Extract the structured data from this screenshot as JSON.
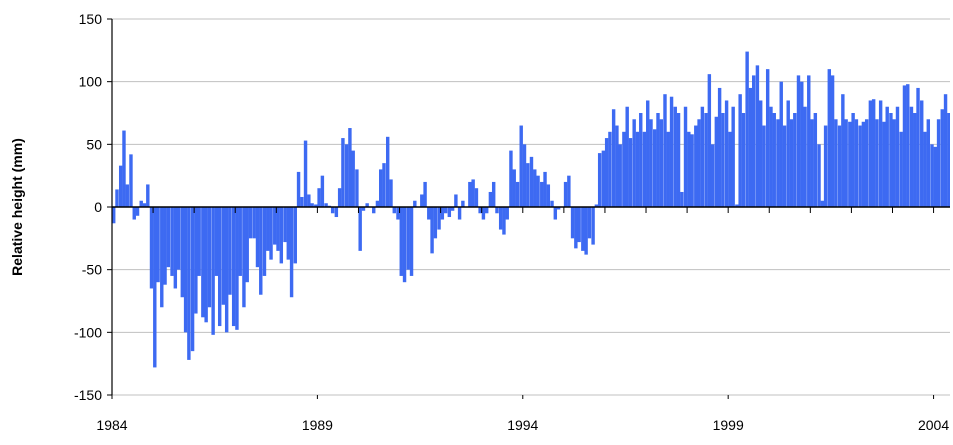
{
  "chart_data": {
    "type": "bar",
    "y_label": "Relative height (mm)",
    "color": "#3d6af2",
    "grid": true,
    "xlim": [
      1984,
      2004.4
    ],
    "xticks": [
      1984,
      1989,
      1994,
      1999,
      2004
    ],
    "xminorticks": [
      1984,
      1985,
      1986,
      1987,
      1988,
      1989,
      1990,
      1991,
      1992,
      1993,
      1994,
      1995,
      1996,
      1997,
      1998,
      1999,
      2000,
      2001,
      2002,
      2003,
      2004
    ],
    "ylim": [
      -150,
      150
    ],
    "yticks": [
      -150,
      -100,
      -50,
      0,
      50,
      100,
      150
    ],
    "x": [
      1984.0,
      1984.08,
      1984.17,
      1984.25,
      1984.33,
      1984.42,
      1984.5,
      1984.58,
      1984.67,
      1984.75,
      1984.83,
      1984.92,
      1985.0,
      1985.08,
      1985.17,
      1985.25,
      1985.33,
      1985.42,
      1985.5,
      1985.58,
      1985.67,
      1985.75,
      1985.83,
      1985.92,
      1986.0,
      1986.08,
      1986.17,
      1986.25,
      1986.33,
      1986.42,
      1986.5,
      1986.58,
      1986.67,
      1986.75,
      1986.83,
      1986.92,
      1987.0,
      1987.08,
      1987.17,
      1987.25,
      1987.33,
      1987.42,
      1987.5,
      1987.58,
      1987.67,
      1987.75,
      1987.83,
      1987.92,
      1988.0,
      1988.08,
      1988.17,
      1988.25,
      1988.33,
      1988.42,
      1988.5,
      1988.58,
      1988.67,
      1988.75,
      1988.83,
      1988.92,
      1989.0,
      1989.08,
      1989.17,
      1989.25,
      1989.33,
      1989.42,
      1989.5,
      1989.58,
      1989.67,
      1989.75,
      1989.83,
      1989.92,
      1990.0,
      1990.08,
      1990.17,
      1990.25,
      1990.33,
      1990.42,
      1990.5,
      1990.58,
      1990.67,
      1990.75,
      1990.83,
      1990.92,
      1991.0,
      1991.08,
      1991.17,
      1991.25,
      1991.33,
      1991.42,
      1991.5,
      1991.58,
      1991.67,
      1991.75,
      1991.83,
      1991.92,
      1992.0,
      1992.08,
      1992.17,
      1992.25,
      1992.33,
      1992.42,
      1992.5,
      1992.58,
      1992.67,
      1992.75,
      1992.83,
      1992.92,
      1993.0,
      1993.08,
      1993.17,
      1993.25,
      1993.33,
      1993.42,
      1993.5,
      1993.58,
      1993.67,
      1993.75,
      1993.83,
      1993.92,
      1994.0,
      1994.08,
      1994.17,
      1994.25,
      1994.33,
      1994.42,
      1994.5,
      1994.58,
      1994.67,
      1994.75,
      1994.83,
      1994.92,
      1995.0,
      1995.08,
      1995.17,
      1995.25,
      1995.33,
      1995.42,
      1995.5,
      1995.58,
      1995.67,
      1995.75,
      1995.83,
      1995.92,
      1996.0,
      1996.08,
      1996.17,
      1996.25,
      1996.33,
      1996.42,
      1996.5,
      1996.58,
      1996.67,
      1996.75,
      1996.83,
      1996.92,
      1997.0,
      1997.08,
      1997.17,
      1997.25,
      1997.33,
      1997.42,
      1997.5,
      1997.58,
      1997.67,
      1997.75,
      1997.83,
      1997.92,
      1998.0,
      1998.08,
      1998.17,
      1998.25,
      1998.33,
      1998.42,
      1998.5,
      1998.58,
      1998.67,
      1998.75,
      1998.83,
      1998.92,
      1999.0,
      1999.08,
      1999.17,
      1999.25,
      1999.33,
      1999.42,
      1999.5,
      1999.58,
      1999.67,
      1999.75,
      1999.83,
      1999.92,
      2000.0,
      2000.08,
      2000.17,
      2000.25,
      2000.33,
      2000.42,
      2000.5,
      2000.58,
      2000.67,
      2000.75,
      2000.83,
      2000.92,
      2001.0,
      2001.08,
      2001.17,
      2001.25,
      2001.33,
      2001.42,
      2001.5,
      2001.58,
      2001.67,
      2001.75,
      2001.83,
      2001.92,
      2002.0,
      2002.08,
      2002.17,
      2002.25,
      2002.33,
      2002.42,
      2002.5,
      2002.58,
      2002.67,
      2002.75,
      2002.83,
      2002.92,
      2003.0,
      2003.08,
      2003.17,
      2003.25,
      2003.33,
      2003.42,
      2003.5,
      2003.58,
      2003.67,
      2003.75,
      2003.83,
      2003.92,
      2004.0,
      2004.08,
      2004.17,
      2004.25,
      2004.33
    ],
    "values": [
      -13,
      14,
      33,
      61,
      18,
      42,
      -10,
      -7,
      5,
      3,
      18,
      -65,
      -128,
      -60,
      -80,
      -62,
      -48,
      -55,
      -65,
      -50,
      -72,
      -100,
      -122,
      -115,
      -85,
      -55,
      -88,
      -92,
      -80,
      -102,
      -55,
      -95,
      -78,
      -100,
      -70,
      -95,
      -98,
      -55,
      -80,
      -60,
      -25,
      -25,
      -48,
      -70,
      -55,
      -35,
      -42,
      -30,
      -35,
      -45,
      -28,
      -42,
      -72,
      -45,
      28,
      8,
      53,
      10,
      3,
      2,
      15,
      25,
      3,
      1,
      -5,
      -8,
      15,
      55,
      50,
      63,
      45,
      30,
      -35,
      -3,
      3,
      0,
      -5,
      5,
      30,
      35,
      56,
      22,
      -5,
      -10,
      -55,
      -60,
      -50,
      -55,
      5,
      0,
      10,
      20,
      -10,
      -37,
      -25,
      -18,
      -10,
      -5,
      -8,
      -3,
      10,
      -10,
      5,
      0,
      20,
      22,
      15,
      -5,
      -10,
      -5,
      12,
      20,
      -5,
      -18,
      -22,
      -10,
      45,
      30,
      20,
      65,
      50,
      35,
      40,
      30,
      25,
      20,
      28,
      18,
      5,
      -10,
      -2,
      0,
      20,
      25,
      -25,
      -33,
      -28,
      -35,
      -38,
      -25,
      -30,
      2,
      43,
      45,
      55,
      60,
      78,
      65,
      50,
      60,
      80,
      55,
      70,
      60,
      75,
      60,
      85,
      70,
      62,
      75,
      70,
      90,
      60,
      88,
      80,
      75,
      12,
      80,
      60,
      58,
      65,
      70,
      80,
      75,
      106,
      50,
      72,
      95,
      75,
      85,
      60,
      80,
      2,
      90,
      75,
      124,
      95,
      105,
      113,
      85,
      65,
      110,
      80,
      75,
      70,
      100,
      65,
      85,
      70,
      75,
      105,
      100,
      80,
      105,
      70,
      75,
      50,
      5,
      65,
      110,
      105,
      70,
      65,
      90,
      70,
      68,
      75,
      70,
      65,
      68,
      70,
      85,
      86,
      70,
      85,
      68,
      80,
      75,
      70,
      80,
      60,
      97,
      98,
      80,
      75,
      95,
      85,
      60,
      70,
      50,
      48,
      70,
      78,
      90,
      75
    ]
  }
}
